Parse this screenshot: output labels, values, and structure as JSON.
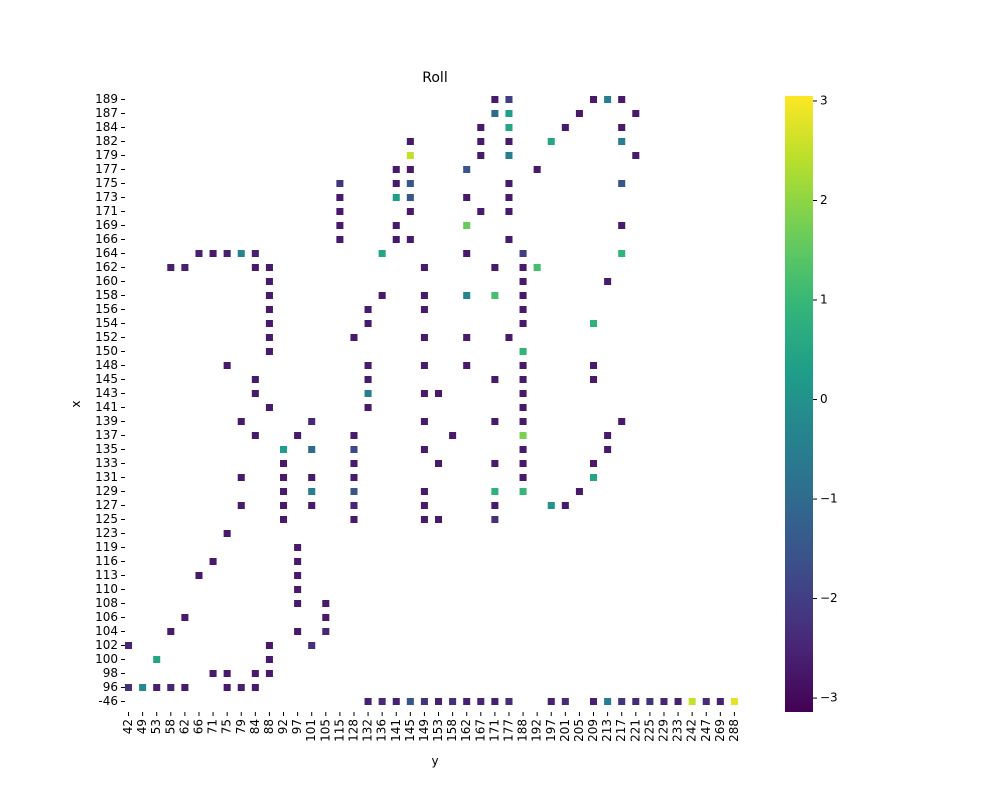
{
  "chart_data": {
    "type": "heatmap",
    "title": "Roll",
    "x_label": "y",
    "y_label": "x",
    "colormap": "viridis",
    "vlim": [
      -3.14,
      3.05
    ],
    "cbar_ticks": [
      {
        "value": -3,
        "label": "−3"
      },
      {
        "value": -2,
        "label": "−2"
      },
      {
        "value": -1,
        "label": "−1"
      },
      0,
      1,
      2,
      3
    ],
    "x_categories": [
      "42",
      "49",
      "53",
      "58",
      "62",
      "66",
      "71",
      "75",
      "79",
      "84",
      "88",
      "92",
      "97",
      "101",
      "105",
      "115",
      "128",
      "132",
      "136",
      "141",
      "145",
      "149",
      "153",
      "158",
      "162",
      "167",
      "171",
      "177",
      "188",
      "192",
      "197",
      "201",
      "205",
      "209",
      "213",
      "217",
      "221",
      "225",
      "229",
      "233",
      "242",
      "247",
      "269",
      "288"
    ],
    "y_categories": [
      "189",
      "187",
      "184",
      "182",
      "179",
      "177",
      "175",
      "173",
      "171",
      "169",
      "166",
      "164",
      "162",
      "160",
      "158",
      "156",
      "154",
      "152",
      "150",
      "148",
      "145",
      "143",
      "141",
      "139",
      "137",
      "135",
      "133",
      "131",
      "129",
      "127",
      "125",
      "123",
      "119",
      "116",
      "113",
      "110",
      "108",
      "106",
      "104",
      "102",
      "100",
      "98",
      "96",
      "-46"
    ],
    "cells": [
      [
        "132",
        "-46",
        -2.6
      ],
      [
        "136",
        "-46",
        -2.4
      ],
      [
        "141",
        "-46",
        -2.6
      ],
      [
        "145",
        "-46",
        -1.5
      ],
      [
        "149",
        "-46",
        -2.2
      ],
      [
        "153",
        "-46",
        -2.6
      ],
      [
        "158",
        "-46",
        -2.3
      ],
      [
        "162",
        "-46",
        -2.6
      ],
      [
        "167",
        "-46",
        -2.5
      ],
      [
        "171",
        "-46",
        -2.6
      ],
      [
        "177",
        "-46",
        -2.3
      ],
      [
        "197",
        "-46",
        -2.6
      ],
      [
        "201",
        "-46",
        -2.4
      ],
      [
        "209",
        "-46",
        -2.6
      ],
      [
        "213",
        "-46",
        -0.5
      ],
      [
        "217",
        "-46",
        -2.2
      ],
      [
        "221",
        "-46",
        -2.4
      ],
      [
        "225",
        "-46",
        -2.2
      ],
      [
        "229",
        "-46",
        -2.5
      ],
      [
        "233",
        "-46",
        -2.6
      ],
      [
        "242",
        "-46",
        2.5
      ],
      [
        "247",
        "-46",
        -2.4
      ],
      [
        "269",
        "-46",
        -2.6
      ],
      [
        "288",
        "-46",
        2.8
      ],
      [
        "42",
        "96",
        -2.3
      ],
      [
        "49",
        "96",
        -0.2
      ],
      [
        "53",
        "96",
        -2.6
      ],
      [
        "58",
        "96",
        -2.5
      ],
      [
        "62",
        "96",
        -2.7
      ],
      [
        "75",
        "96",
        -2.7
      ],
      [
        "79",
        "96",
        -2.6
      ],
      [
        "84",
        "96",
        -2.7
      ],
      [
        "71",
        "98",
        -2.7
      ],
      [
        "75",
        "98",
        -2.7
      ],
      [
        "84",
        "98",
        -2.7
      ],
      [
        "88",
        "98",
        -2.7
      ],
      [
        "53",
        "100",
        0.5
      ],
      [
        "88",
        "100",
        -2.7
      ],
      [
        "42",
        "102",
        -2.5
      ],
      [
        "88",
        "102",
        -2.7
      ],
      [
        "101",
        "102",
        -2.3
      ],
      [
        "58",
        "104",
        -2.7
      ],
      [
        "97",
        "104",
        -2.7
      ],
      [
        "105",
        "104",
        -2.5
      ],
      [
        "62",
        "106",
        -2.7
      ],
      [
        "105",
        "106",
        -2.7
      ],
      [
        "97",
        "108",
        -2.7
      ],
      [
        "105",
        "108",
        -2.7
      ],
      [
        "97",
        "110",
        -2.7
      ],
      [
        "66",
        "113",
        -2.7
      ],
      [
        "97",
        "113",
        -2.7
      ],
      [
        "71",
        "116",
        -2.7
      ],
      [
        "97",
        "116",
        -2.7
      ],
      [
        "97",
        "119",
        -2.7
      ],
      [
        "75",
        "123",
        -2.7
      ],
      [
        "92",
        "125",
        -2.7
      ],
      [
        "128",
        "125",
        -2.7
      ],
      [
        "149",
        "125",
        -2.7
      ],
      [
        "153",
        "125",
        -2.7
      ],
      [
        "171",
        "125",
        -2.3
      ],
      [
        "79",
        "127",
        -2.7
      ],
      [
        "92",
        "127",
        -2.7
      ],
      [
        "101",
        "127",
        -2.7
      ],
      [
        "128",
        "127",
        -2.5
      ],
      [
        "149",
        "127",
        -2.7
      ],
      [
        "171",
        "127",
        -2.7
      ],
      [
        "197",
        "127",
        0.0
      ],
      [
        "201",
        "127",
        -2.7
      ],
      [
        "92",
        "129",
        -2.7
      ],
      [
        "101",
        "129",
        -0.5
      ],
      [
        "128",
        "129",
        -1.5
      ],
      [
        "149",
        "129",
        -2.7
      ],
      [
        "171",
        "129",
        0.8
      ],
      [
        "188",
        "129",
        1.0
      ],
      [
        "205",
        "129",
        -2.7
      ],
      [
        "79",
        "131",
        -2.7
      ],
      [
        "92",
        "131",
        -2.7
      ],
      [
        "101",
        "131",
        -2.7
      ],
      [
        "128",
        "131",
        -2.7
      ],
      [
        "188",
        "131",
        -2.7
      ],
      [
        "209",
        "131",
        0.5
      ],
      [
        "92",
        "133",
        -2.7
      ],
      [
        "128",
        "133",
        -2.7
      ],
      [
        "153",
        "133",
        -2.7
      ],
      [
        "171",
        "133",
        -2.7
      ],
      [
        "188",
        "133",
        -2.7
      ],
      [
        "209",
        "133",
        -2.7
      ],
      [
        "92",
        "135",
        0.3
      ],
      [
        "101",
        "135",
        -1.0
      ],
      [
        "128",
        "135",
        -1.8
      ],
      [
        "149",
        "135",
        -2.7
      ],
      [
        "188",
        "135",
        -2.7
      ],
      [
        "213",
        "135",
        -2.7
      ],
      [
        "84",
        "137",
        -2.7
      ],
      [
        "97",
        "137",
        -2.7
      ],
      [
        "128",
        "137",
        -2.7
      ],
      [
        "158",
        "137",
        -2.7
      ],
      [
        "188",
        "137",
        1.8
      ],
      [
        "213",
        "137",
        -2.7
      ],
      [
        "79",
        "139",
        -2.7
      ],
      [
        "101",
        "139",
        -2.5
      ],
      [
        "149",
        "139",
        -2.7
      ],
      [
        "171",
        "139",
        -2.7
      ],
      [
        "188",
        "139",
        -2.7
      ],
      [
        "217",
        "139",
        -2.7
      ],
      [
        "88",
        "141",
        -2.7
      ],
      [
        "132",
        "141",
        -2.7
      ],
      [
        "188",
        "141",
        -2.7
      ],
      [
        "84",
        "143",
        -2.7
      ],
      [
        "132",
        "143",
        -0.5
      ],
      [
        "149",
        "143",
        -2.7
      ],
      [
        "153",
        "143",
        -2.7
      ],
      [
        "188",
        "143",
        -2.7
      ],
      [
        "84",
        "145",
        -2.7
      ],
      [
        "132",
        "145",
        -2.7
      ],
      [
        "171",
        "145",
        -2.7
      ],
      [
        "188",
        "145",
        -2.7
      ],
      [
        "209",
        "145",
        -2.7
      ],
      [
        "75",
        "148",
        -2.7
      ],
      [
        "132",
        "148",
        -2.7
      ],
      [
        "149",
        "148",
        -2.7
      ],
      [
        "162",
        "148",
        -2.7
      ],
      [
        "188",
        "148",
        -2.7
      ],
      [
        "209",
        "148",
        -2.7
      ],
      [
        "88",
        "150",
        -2.7
      ],
      [
        "188",
        "150",
        0.9
      ],
      [
        "88",
        "152",
        -2.7
      ],
      [
        "128",
        "152",
        -2.7
      ],
      [
        "149",
        "152",
        -2.7
      ],
      [
        "162",
        "152",
        -2.7
      ],
      [
        "177",
        "152",
        -2.7
      ],
      [
        "88",
        "154",
        -2.7
      ],
      [
        "132",
        "154",
        -2.7
      ],
      [
        "188",
        "154",
        -2.7
      ],
      [
        "209",
        "154",
        0.8
      ],
      [
        "88",
        "156",
        -2.7
      ],
      [
        "132",
        "156",
        -2.7
      ],
      [
        "149",
        "156",
        -2.7
      ],
      [
        "188",
        "156",
        -2.7
      ],
      [
        "88",
        "158",
        -2.7
      ],
      [
        "136",
        "158",
        -2.7
      ],
      [
        "149",
        "158",
        -2.7
      ],
      [
        "162",
        "158",
        -0.3
      ],
      [
        "171",
        "158",
        1.2
      ],
      [
        "188",
        "158",
        -2.7
      ],
      [
        "88",
        "160",
        -2.7
      ],
      [
        "188",
        "160",
        -2.7
      ],
      [
        "213",
        "160",
        -2.7
      ],
      [
        "58",
        "162",
        -2.6
      ],
      [
        "62",
        "162",
        -2.6
      ],
      [
        "84",
        "162",
        -2.7
      ],
      [
        "88",
        "162",
        -2.7
      ],
      [
        "149",
        "162",
        -2.7
      ],
      [
        "171",
        "162",
        -2.7
      ],
      [
        "188",
        "162",
        -2.7
      ],
      [
        "192",
        "162",
        1.2
      ],
      [
        "66",
        "164",
        -2.6
      ],
      [
        "71",
        "164",
        -2.7
      ],
      [
        "75",
        "164",
        -2.6
      ],
      [
        "79",
        "164",
        -0.3
      ],
      [
        "84",
        "164",
        -2.6
      ],
      [
        "136",
        "164",
        0.5
      ],
      [
        "162",
        "164",
        -2.7
      ],
      [
        "188",
        "164",
        -2.0
      ],
      [
        "217",
        "164",
        0.9
      ],
      [
        "115",
        "166",
        -2.7
      ],
      [
        "141",
        "166",
        -2.7
      ],
      [
        "145",
        "166",
        -2.7
      ],
      [
        "177",
        "166",
        -2.7
      ],
      [
        "115",
        "169",
        -2.7
      ],
      [
        "141",
        "169",
        -2.7
      ],
      [
        "162",
        "169",
        1.6
      ],
      [
        "217",
        "169",
        -2.7
      ],
      [
        "115",
        "171",
        -2.7
      ],
      [
        "145",
        "171",
        -2.7
      ],
      [
        "167",
        "171",
        -2.7
      ],
      [
        "177",
        "171",
        -2.7
      ],
      [
        "115",
        "173",
        -2.7
      ],
      [
        "141",
        "173",
        0.3
      ],
      [
        "145",
        "173",
        -1.5
      ],
      [
        "162",
        "173",
        -2.7
      ],
      [
        "177",
        "173",
        -2.7
      ],
      [
        "115",
        "175",
        -2.2
      ],
      [
        "141",
        "175",
        -2.7
      ],
      [
        "145",
        "175",
        -1.5
      ],
      [
        "177",
        "175",
        -2.7
      ],
      [
        "217",
        "175",
        -1.5
      ],
      [
        "141",
        "177",
        -2.7
      ],
      [
        "145",
        "177",
        -2.7
      ],
      [
        "162",
        "177",
        -1.5
      ],
      [
        "192",
        "177",
        -2.7
      ],
      [
        "145",
        "179",
        2.5
      ],
      [
        "167",
        "179",
        -2.7
      ],
      [
        "177",
        "179",
        -0.5
      ],
      [
        "221",
        "179",
        -2.7
      ],
      [
        "145",
        "182",
        -2.7
      ],
      [
        "167",
        "182",
        -2.7
      ],
      [
        "177",
        "182",
        -2.7
      ],
      [
        "197",
        "182",
        0.5
      ],
      [
        "217",
        "182",
        -0.5
      ],
      [
        "167",
        "184",
        -2.7
      ],
      [
        "177",
        "184",
        0.5
      ],
      [
        "201",
        "184",
        -2.7
      ],
      [
        "217",
        "184",
        -2.7
      ],
      [
        "171",
        "187",
        -1.0
      ],
      [
        "177",
        "187",
        0.3
      ],
      [
        "205",
        "187",
        -2.7
      ],
      [
        "221",
        "187",
        -2.7
      ],
      [
        "171",
        "189",
        -2.7
      ],
      [
        "177",
        "189",
        -2.0
      ],
      [
        "209",
        "189",
        -2.7
      ],
      [
        "213",
        "189",
        -0.5
      ],
      [
        "217",
        "189",
        -2.7
      ]
    ]
  }
}
